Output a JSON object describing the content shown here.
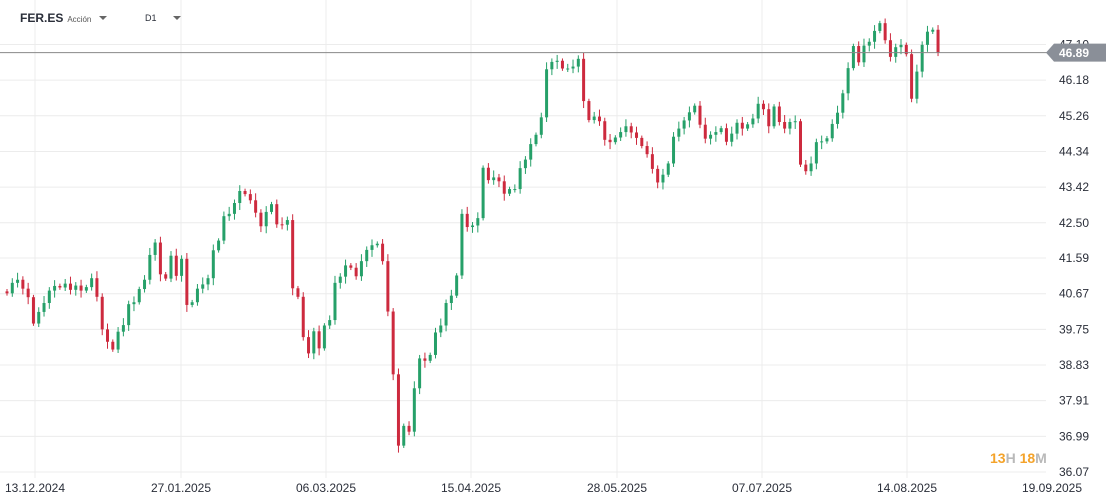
{
  "header": {
    "symbol": "FER.ES",
    "symbol_type": "Acción",
    "interval": "D1"
  },
  "countdown": {
    "hours": "13",
    "hours_unit": "H",
    "minutes": "18",
    "minutes_unit": "M"
  },
  "colors": {
    "up": "#26a069",
    "down": "#cd2a3e",
    "last_price_line": "#888888",
    "last_price_label_bg": "#8a8f98",
    "countdown_digits": "#f4a32a"
  },
  "chart_data": {
    "type": "candlestick",
    "title": "",
    "xlabel": "",
    "ylabel": "",
    "ylim": [
      36.07,
      48.0
    ],
    "grid": true,
    "y_ticks": [
      "36.07",
      "36.99",
      "37.91",
      "38.83",
      "39.75",
      "40.67",
      "41.59",
      "42.50",
      "43.42",
      "44.34",
      "45.26",
      "46.18",
      "47.10"
    ],
    "x_ticks": [
      "13.12.2024",
      "27.01.2025",
      "06.03.2025",
      "15.04.2025",
      "28.05.2025",
      "07.07.2025",
      "14.08.2025",
      "19.09.2025"
    ],
    "last_price": 46.89,
    "last_price_label": "46.89",
    "closes": [
      40.68,
      40.95,
      41.03,
      40.8,
      40.58,
      39.9,
      40.2,
      40.43,
      40.75,
      40.87,
      40.83,
      40.93,
      40.77,
      40.88,
      40.75,
      40.84,
      41.07,
      40.59,
      39.75,
      39.43,
      39.23,
      39.69,
      39.86,
      40.4,
      40.45,
      40.79,
      41.03,
      41.67,
      41.99,
      41.17,
      41.06,
      41.65,
      41.13,
      41.57,
      40.38,
      40.45,
      40.8,
      40.91,
      41.07,
      41.79,
      42.04,
      42.67,
      42.73,
      43.01,
      43.32,
      43.24,
      43.08,
      42.76,
      42.41,
      42.78,
      42.98,
      42.46,
      42.45,
      42.57,
      40.81,
      40.59,
      39.55,
      39.13,
      39.7,
      39.26,
      39.85,
      39.99,
      40.95,
      41.11,
      41.4,
      41.34,
      41.12,
      41.51,
      41.8,
      41.92,
      41.96,
      41.51,
      40.21,
      38.59,
      36.75,
      37.26,
      37.11,
      38.23,
      39.0,
      38.94,
      39.09,
      39.67,
      39.85,
      40.43,
      40.62,
      41.14,
      42.73,
      42.39,
      42.43,
      42.62,
      43.92,
      43.6,
      43.67,
      43.57,
      43.25,
      43.37,
      43.37,
      43.91,
      44.13,
      44.53,
      44.77,
      45.22,
      46.46,
      46.65,
      46.68,
      46.48,
      46.48,
      46.53,
      46.73,
      45.64,
      45.15,
      45.24,
      45.12,
      44.64,
      44.58,
      44.7,
      44.84,
      44.99,
      44.83,
      44.69,
      44.48,
      44.27,
      43.89,
      43.54,
      43.74,
      44.03,
      44.72,
      44.93,
      45.14,
      45.35,
      45.52,
      45.03,
      44.67,
      44.77,
      44.84,
      44.94,
      44.59,
      44.8,
      45.08,
      44.93,
      45.04,
      45.19,
      45.57,
      45.43,
      44.99,
      45.5,
      45.1,
      44.93,
      45.1,
      45.12,
      44.0,
      43.83,
      44.03,
      44.58,
      44.6,
      44.68,
      45.05,
      45.34,
      45.84,
      46.49,
      47.06,
      46.64,
      47.07,
      47.17,
      47.45,
      47.65,
      47.21,
      46.78,
      47.03,
      47.09,
      46.85,
      45.7,
      46.4,
      47.09,
      47.43,
      47.48,
      46.89
    ]
  }
}
